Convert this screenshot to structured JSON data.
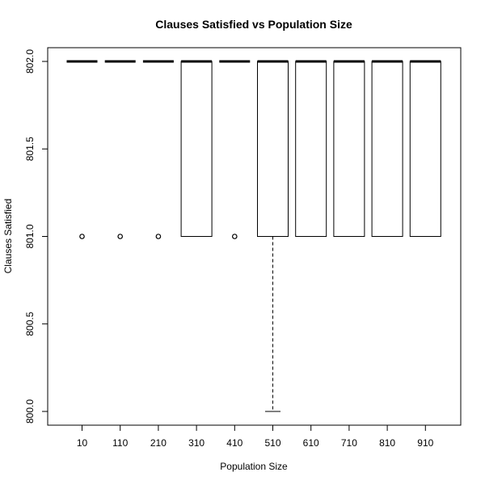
{
  "chart_data": {
    "type": "box",
    "title": "Clauses Satisfied vs Population Size",
    "xlabel": "Population Size",
    "ylabel": "Clauses Satisfied",
    "ylim": [
      799.96,
      802.04
    ],
    "yticks": [
      800.0,
      800.5,
      801.0,
      801.5,
      802.0
    ],
    "ytick_labels": [
      "800.0",
      "800.5",
      "801.0",
      "801.5",
      "802.0"
    ],
    "categories": [
      "10",
      "110",
      "210",
      "310",
      "410",
      "510",
      "610",
      "710",
      "810",
      "910"
    ],
    "boxes": [
      {
        "label": "10",
        "min": 802,
        "q1": 802,
        "median": 802,
        "q3": 802,
        "max": 802,
        "outliers": [
          801
        ]
      },
      {
        "label": "110",
        "min": 802,
        "q1": 802,
        "median": 802,
        "q3": 802,
        "max": 802,
        "outliers": [
          801
        ]
      },
      {
        "label": "210",
        "min": 802,
        "q1": 802,
        "median": 802,
        "q3": 802,
        "max": 802,
        "outliers": [
          801
        ]
      },
      {
        "label": "310",
        "min": 801,
        "q1": 801,
        "median": 802,
        "q3": 802,
        "max": 802,
        "outliers": []
      },
      {
        "label": "410",
        "min": 802,
        "q1": 802,
        "median": 802,
        "q3": 802,
        "max": 802,
        "outliers": [
          801
        ]
      },
      {
        "label": "510",
        "min": 800,
        "q1": 801,
        "median": 802,
        "q3": 802,
        "max": 802,
        "outliers": []
      },
      {
        "label": "610",
        "min": 801,
        "q1": 801,
        "median": 802,
        "q3": 802,
        "max": 802,
        "outliers": []
      },
      {
        "label": "710",
        "min": 801,
        "q1": 801,
        "median": 802,
        "q3": 802,
        "max": 802,
        "outliers": []
      },
      {
        "label": "810",
        "min": 801,
        "q1": 801,
        "median": 802,
        "q3": 802,
        "max": 802,
        "outliers": []
      },
      {
        "label": "910",
        "min": 801,
        "q1": 801,
        "median": 802,
        "q3": 802,
        "max": 802,
        "outliers": []
      }
    ],
    "grid": false,
    "legend": "none"
  }
}
